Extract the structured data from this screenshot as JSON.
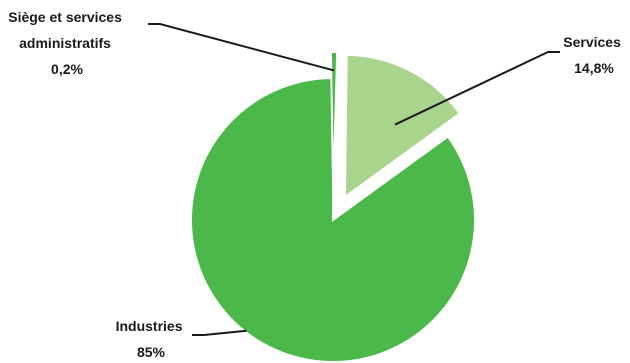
{
  "chart_data": {
    "type": "pie",
    "title": "",
    "slices": [
      {
        "label": "Industries",
        "value": 85,
        "value_label": "85%",
        "color": "#4bb84a",
        "exploded": false
      },
      {
        "label": "Siège et services administratifs",
        "label_lines": [
          "Siège et services",
          "administratifs"
        ],
        "value": 0.2,
        "value_label": "0,2%",
        "color": "#4bb84a",
        "exploded": true
      },
      {
        "label": "Services",
        "value": 14.8,
        "value_label": "14,8%",
        "color": "#a8d48c",
        "exploded": true
      }
    ],
    "legend": "none"
  }
}
